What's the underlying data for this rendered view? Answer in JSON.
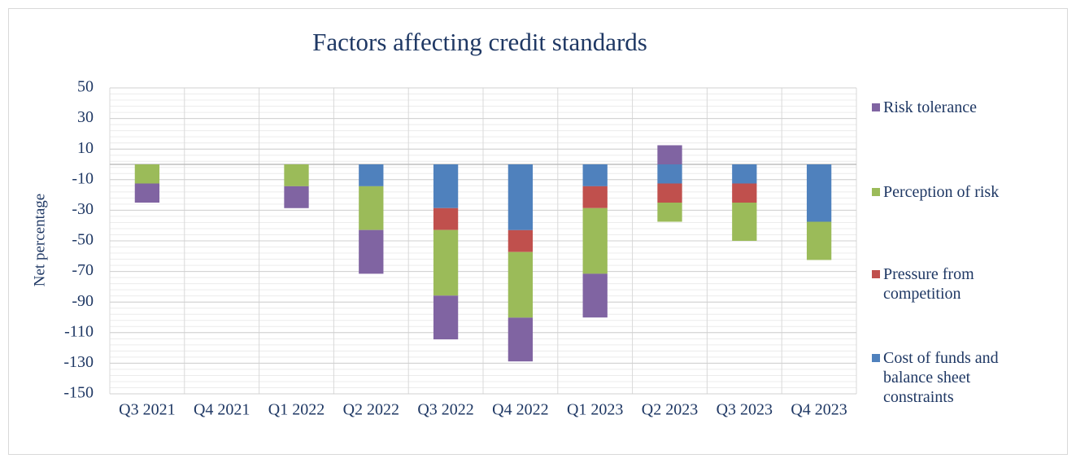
{
  "chart_data": {
    "type": "stacked_bar",
    "title": "Factors affecting credit standards",
    "y_label": "Net percentage",
    "categories": [
      "Q3 2021",
      "Q4 2021",
      "Q1 2022",
      "Q2 2022",
      "Q3 2022",
      "Q4 2022",
      "Q1 2023",
      "Q2 2023",
      "Q3 2023",
      "Q4 2023"
    ],
    "series": [
      {
        "name": "Risk tolerance",
        "color": "#8064a2",
        "values": [
          -12.5,
          0,
          -14.3,
          -28.6,
          -28.6,
          -28.6,
          -28.6,
          12.5,
          0,
          0
        ]
      },
      {
        "name": "Perception of risk",
        "color": "#9bbb59",
        "values": [
          -12.5,
          0,
          -14.3,
          -28.6,
          -42.9,
          -42.9,
          -42.9,
          -12.5,
          -25,
          -25
        ]
      },
      {
        "name": "Pressure from competition",
        "color": "#c0504d",
        "values": [
          0,
          0,
          0,
          0,
          -14.3,
          -14.3,
          -14.3,
          -12.5,
          -12.5,
          0
        ]
      },
      {
        "name": "Cost of funds and balance sheet constraints",
        "color": "#4f81bd",
        "values": [
          0,
          0,
          0,
          -14.3,
          -28.6,
          -43,
          -14.3,
          -12.5,
          -12.5,
          -37.5
        ]
      }
    ],
    "ylim": [
      -150,
      50
    ],
    "yticks": [
      -150,
      -130,
      -110,
      -90,
      -70,
      -50,
      -30,
      -10,
      10,
      30,
      50
    ],
    "grid": true,
    "legend": "right"
  }
}
